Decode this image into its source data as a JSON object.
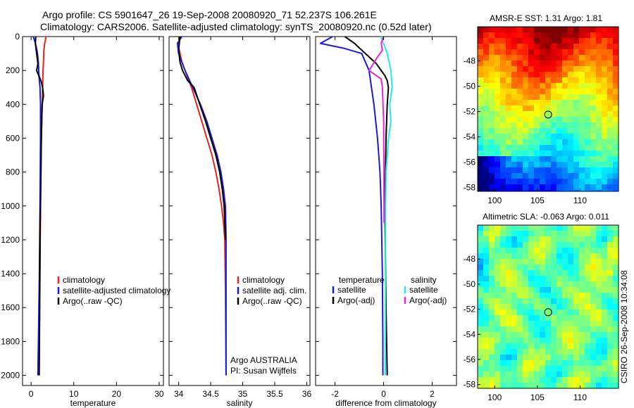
{
  "header": {
    "title_line1": "Argo profile: CS 5901647_26 19-Sep-2008 20080920_71 52.237S 106.261E",
    "title_line2": "Climatology: CARS2006. Satellite-adjusted climatology: synTS_20080920.nc (0.52d later)"
  },
  "side_stamp": "CSIRO 26-Sep-2008 10:34:08",
  "colors": {
    "climatology": "#e8231f",
    "satellite": "#1a1adc",
    "argo": "#000000",
    "sat_salinity": "#25e8e8",
    "argo_salinity": "#e825d8"
  },
  "chart_data": [
    {
      "type": "line",
      "name": "temperature-profile",
      "xlabel": "temperature",
      "ylabel": "",
      "xlim": [
        -2,
        31
      ],
      "ylim": [
        2060,
        0
      ],
      "x_ticks": [
        0,
        10,
        20,
        30
      ],
      "y_ticks": [
        0,
        200,
        400,
        600,
        800,
        1000,
        1200,
        1400,
        1600,
        1800,
        2000
      ],
      "y_reversed": true,
      "legend": [
        "climatology",
        "satellite-adjusted climatology",
        "Argo(..raw -QC)"
      ],
      "series": [
        {
          "name": "climatology",
          "color": "climatology",
          "x": [
            3.5,
            3.2,
            3.0,
            2.9,
            2.8,
            2.7,
            2.6,
            2.5,
            2.4,
            2.3,
            2.2,
            2.1,
            1.9
          ],
          "y": [
            0,
            40,
            80,
            150,
            200,
            300,
            400,
            500,
            600,
            800,
            1000,
            1400,
            2000
          ]
        },
        {
          "name": "satellite-adjusted climatology",
          "color": "satellite",
          "x": [
            0.5,
            0.9,
            1.2,
            1.5,
            1.7,
            1.8,
            1.9,
            2.1,
            2.2,
            2.2,
            2.1,
            1.9,
            1.6
          ],
          "y": [
            0,
            30,
            60,
            100,
            150,
            200,
            250,
            300,
            400,
            600,
            1000,
            1500,
            2000
          ]
        },
        {
          "name": "Argo(..raw -QC)",
          "color": "argo",
          "x": [
            1.1,
            1.0,
            1.2,
            1.4,
            1.6,
            1.3,
            1.8,
            2.3,
            2.7,
            2.9,
            2.6,
            2.5,
            2.4,
            2.3,
            2.1,
            1.9
          ],
          "y": [
            0,
            40,
            80,
            120,
            160,
            200,
            230,
            260,
            300,
            350,
            400,
            500,
            600,
            800,
            1200,
            2000
          ]
        }
      ]
    },
    {
      "type": "line",
      "name": "salinity-profile",
      "xlabel": "salinity",
      "ylabel": "",
      "xlim": [
        33.85,
        36.05
      ],
      "ylim": [
        2060,
        0
      ],
      "x_ticks": [
        34,
        34.5,
        35,
        35.5,
        36
      ],
      "x_tick_labels": [
        "34",
        "34.5",
        "35",
        "35.5",
        "36"
      ],
      "y_reversed": true,
      "legend": [
        "climatology",
        "satellite adj. clim.",
        "Argo(..raw -QC)"
      ],
      "annotations": [
        "Argo AUSTRALIA",
        "PI: Susan Wijffels"
      ],
      "series": [
        {
          "name": "climatology",
          "color": "climatology",
          "x": [
            34.02,
            34.0,
            34.05,
            34.1,
            34.2,
            34.28,
            34.36,
            34.44,
            34.52,
            34.58,
            34.63,
            34.67,
            34.7,
            34.72,
            34.73,
            34.74
          ],
          "y": [
            0,
            60,
            150,
            200,
            300,
            400,
            500,
            600,
            700,
            800,
            900,
            1000,
            1100,
            1200,
            1500,
            2000
          ]
        },
        {
          "name": "satellite adj. clim.",
          "color": "satellite",
          "x": [
            34.05,
            33.98,
            34.0,
            34.1,
            34.22,
            34.34,
            34.44,
            34.52,
            34.6,
            34.66,
            34.7,
            34.73,
            34.74,
            34.74
          ],
          "y": [
            0,
            40,
            100,
            200,
            300,
            400,
            500,
            600,
            700,
            800,
            900,
            1000,
            1200,
            2000
          ]
        },
        {
          "name": "Argo(..raw -QC)",
          "color": "argo",
          "x": [
            34.02,
            34.0,
            34.02,
            34.06,
            34.14,
            34.24,
            34.33,
            34.42,
            34.5,
            34.58,
            34.64,
            34.68,
            34.71,
            34.73
          ],
          "y": [
            0,
            80,
            150,
            200,
            260,
            300,
            400,
            500,
            600,
            700,
            800,
            900,
            1000,
            1200
          ]
        }
      ]
    },
    {
      "type": "line",
      "name": "difference-profile",
      "xlabel": "difference from climatology",
      "ylabel": "",
      "xlim": [
        -2.8,
        3.0
      ],
      "ylim": [
        2060,
        0
      ],
      "x_ticks": [
        -2,
        0,
        2
      ],
      "y_reversed": true,
      "legend_groups": [
        {
          "title": "temperature",
          "items": [
            "satellite",
            "Argo(-adj)"
          ]
        },
        {
          "title": "salinity",
          "items": [
            "satellite",
            "Argo(-adj)"
          ]
        }
      ],
      "series": [
        {
          "name": "temperature satellite",
          "color": "satellite",
          "x": [
            -2.1,
            -2.6,
            -1.6,
            -0.9,
            -0.6,
            -0.5,
            -0.4,
            -0.25,
            -0.15,
            -0.1,
            -0.05,
            -0.03,
            -0.03
          ],
          "y": [
            0,
            40,
            70,
            100,
            200,
            300,
            400,
            600,
            800,
            1000,
            1400,
            1800,
            2000
          ]
        },
        {
          "name": "temperature Argo(-adj)",
          "color": "argo",
          "x": [
            -1.6,
            -1.2,
            -0.9,
            -0.6,
            -0.3,
            -0.1,
            0.05,
            0.15,
            0.2,
            0.15,
            0.1,
            0.05,
            0.1,
            0.15
          ],
          "y": [
            0,
            40,
            80,
            120,
            160,
            200,
            230,
            260,
            300,
            400,
            600,
            1000,
            1600,
            2000
          ]
        },
        {
          "name": "salinity satellite",
          "color": "sat_salinity",
          "x": [
            -0.1,
            -0.05,
            0.05,
            0.15,
            0.3,
            0.35,
            0.25,
            0.3,
            0.2,
            0.15,
            0.1,
            0.08,
            0.07
          ],
          "y": [
            0,
            30,
            60,
            100,
            200,
            300,
            400,
            500,
            600,
            700,
            800,
            1000,
            2000
          ]
        },
        {
          "name": "salinity Argo(-adj)",
          "color": "argo_salinity",
          "x": [
            0.0,
            -0.1,
            -0.05,
            -0.25,
            -0.6,
            -0.1,
            -0.05,
            0.0,
            0.02
          ],
          "y": [
            0,
            40,
            80,
            120,
            200,
            250,
            300,
            500,
            1100
          ]
        }
      ]
    },
    {
      "type": "heatmap",
      "name": "amsre-sst-map",
      "title": "AMSR-E SST: 1.31 Argo: 1.81",
      "x_ticks": [
        100,
        105,
        110
      ],
      "y_ticks": [
        -48,
        -50,
        -52,
        -54,
        -56,
        -58
      ],
      "xlim": [
        98,
        114.5
      ],
      "ylim": [
        -58.3,
        -45.3
      ],
      "argo_marker": {
        "lon": 106.261,
        "lat": -52.237
      }
    },
    {
      "type": "heatmap",
      "name": "altimetric-sla-map",
      "title": "Altimetric SLA: -0.063 Argo: 0.011",
      "x_ticks": [
        100,
        105,
        110
      ],
      "y_ticks": [
        -48,
        -50,
        -52,
        -54,
        -56,
        -58
      ],
      "xlim": [
        98,
        114.5
      ],
      "ylim": [
        -58.3,
        -45.3
      ],
      "argo_marker": {
        "lon": 106.261,
        "lat": -52.237
      }
    }
  ]
}
